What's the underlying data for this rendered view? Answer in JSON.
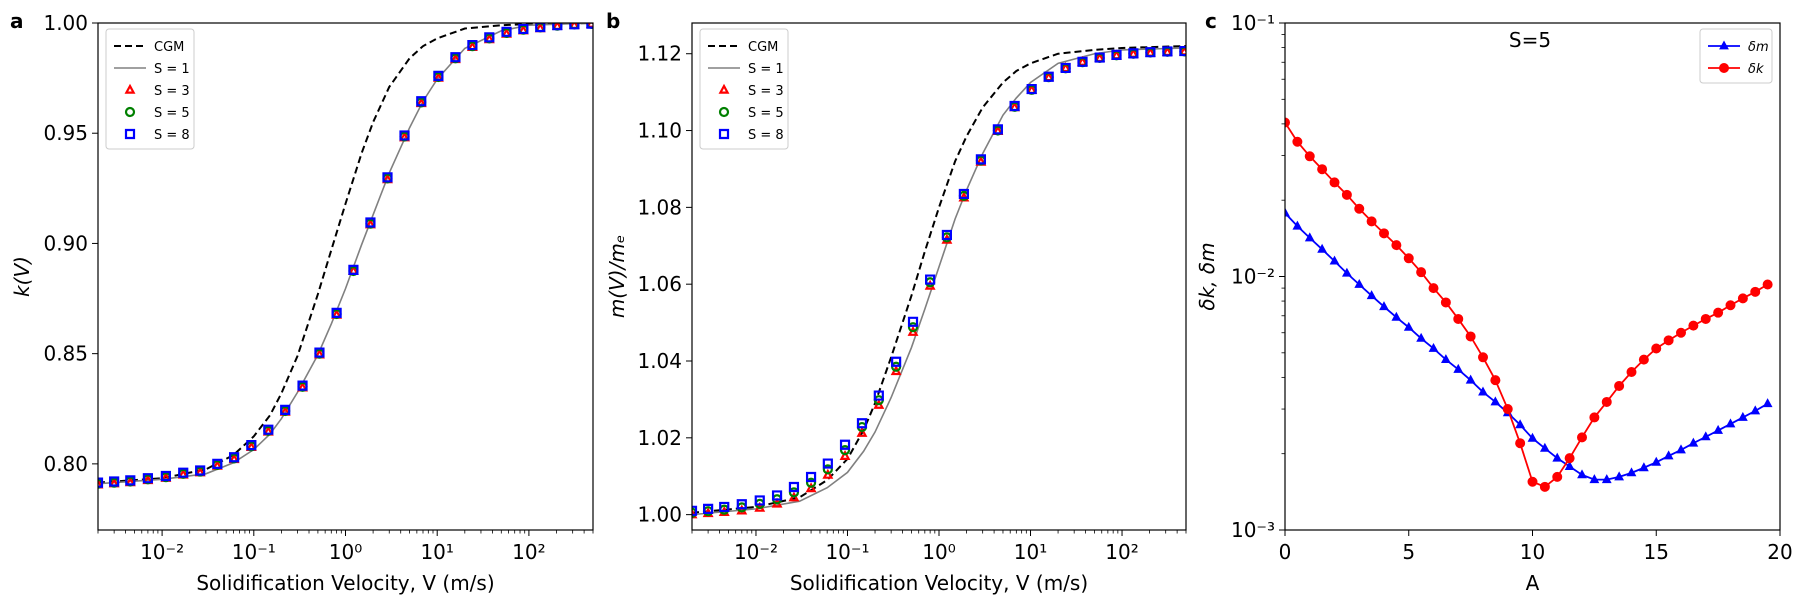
{
  "chart_data": [
    {
      "panel_label": "a",
      "type": "line",
      "xscale": "log",
      "xlim": [
        0.002,
        500
      ],
      "ylim": [
        0.77,
        1.0
      ],
      "xlabel": "Solidification Velocity, V (m/s)",
      "ylabel": "k(V)",
      "legend_position": "top-left",
      "x_ticks": [
        {
          "value": 0.01,
          "label": "10⁻²"
        },
        {
          "value": 0.1,
          "label": "10⁻¹"
        },
        {
          "value": 1,
          "label": "10⁰"
        },
        {
          "value": 10,
          "label": "10¹"
        },
        {
          "value": 100,
          "label": "10²"
        }
      ],
      "y_ticks": [
        {
          "value": 0.8,
          "label": "0.80"
        },
        {
          "value": 0.85,
          "label": "0.85"
        },
        {
          "value": 0.9,
          "label": "0.90"
        },
        {
          "value": 0.95,
          "label": "0.95"
        },
        {
          "value": 1.0,
          "label": "1.00"
        }
      ],
      "series": [
        {
          "name": "CGM",
          "style": "dashed-line",
          "color": "#000000",
          "x": [
            0.002,
            0.01,
            0.03,
            0.06,
            0.1,
            0.15,
            0.2,
            0.3,
            0.5,
            0.7,
            1,
            1.5,
            2,
            3,
            5,
            7,
            10,
            20,
            50,
            100,
            500
          ],
          "y": [
            0.7915,
            0.7935,
            0.7975,
            0.804,
            0.8125,
            0.822,
            0.832,
            0.849,
            0.877,
            0.897,
            0.918,
            0.941,
            0.955,
            0.971,
            0.984,
            0.9895,
            0.993,
            0.9975,
            0.999,
            0.9995,
            1.0
          ]
        },
        {
          "name": "S = 1",
          "style": "solid-line",
          "color": "#808080",
          "x": [
            0.002,
            0.01,
            0.03,
            0.06,
            0.1,
            0.15,
            0.2,
            0.3,
            0.5,
            0.7,
            1,
            1.5,
            2,
            3,
            5,
            7,
            10,
            20,
            50,
            100,
            500
          ],
          "y": [
            0.791,
            0.793,
            0.7955,
            0.8005,
            0.8065,
            0.8135,
            0.8205,
            0.8325,
            0.8495,
            0.8635,
            0.8795,
            0.8995,
            0.913,
            0.932,
            0.9525,
            0.9645,
            0.9745,
            0.9885,
            0.9965,
            0.999,
            1.0
          ]
        },
        {
          "name": "S = 3",
          "style": "triangle-marker",
          "color": "#ff0000",
          "x": [
            0.002,
            0.003,
            0.0045,
            0.007,
            0.011,
            0.017,
            0.026,
            0.04,
            0.061,
            0.094,
            0.144,
            0.22,
            0.34,
            0.52,
            0.8,
            1.22,
            1.87,
            2.87,
            4.4,
            6.7,
            10.3,
            15.8,
            24.2,
            37,
            57,
            87,
            133,
            204,
            313,
            480
          ],
          "y": [
            0.7905,
            0.791,
            0.7915,
            0.7925,
            0.7935,
            0.795,
            0.796,
            0.799,
            0.802,
            0.8075,
            0.8145,
            0.8235,
            0.8345,
            0.8495,
            0.8675,
            0.8875,
            0.9085,
            0.929,
            0.948,
            0.9635,
            0.975,
            0.9835,
            0.989,
            0.9925,
            0.995,
            0.9965,
            0.9975,
            0.9985,
            0.999,
            0.9995
          ]
        },
        {
          "name": "S = 5",
          "style": "circle-marker",
          "color": "#008000",
          "x": [
            0.002,
            0.003,
            0.0045,
            0.007,
            0.011,
            0.017,
            0.026,
            0.04,
            0.061,
            0.094,
            0.144,
            0.22,
            0.34,
            0.52,
            0.8,
            1.22,
            1.87,
            2.87,
            4.4,
            6.7,
            10.3,
            15.8,
            24.2,
            37,
            57,
            87,
            133,
            204,
            313,
            480
          ],
          "y": [
            0.791,
            0.7915,
            0.792,
            0.793,
            0.794,
            0.7955,
            0.7965,
            0.7995,
            0.8025,
            0.808,
            0.815,
            0.824,
            0.835,
            0.85,
            0.868,
            0.8875,
            0.909,
            0.9295,
            0.9485,
            0.964,
            0.9755,
            0.984,
            0.9895,
            0.993,
            0.9955,
            0.997,
            0.998,
            0.9988,
            0.9993,
            0.9996
          ]
        },
        {
          "name": "S = 8",
          "style": "square-marker",
          "color": "#0000ff",
          "x": [
            0.002,
            0.003,
            0.0045,
            0.007,
            0.011,
            0.017,
            0.026,
            0.04,
            0.061,
            0.094,
            0.144,
            0.22,
            0.34,
            0.52,
            0.8,
            1.22,
            1.87,
            2.87,
            4.4,
            6.7,
            10.3,
            15.8,
            24.2,
            37,
            57,
            87,
            133,
            204,
            313,
            480
          ],
          "y": [
            0.7915,
            0.792,
            0.7925,
            0.7935,
            0.7945,
            0.796,
            0.797,
            0.8,
            0.803,
            0.8085,
            0.8155,
            0.8245,
            0.8355,
            0.8505,
            0.8685,
            0.888,
            0.9095,
            0.93,
            0.949,
            0.9645,
            0.976,
            0.9845,
            0.99,
            0.9935,
            0.996,
            0.9973,
            0.9982,
            0.999,
            0.9994,
            0.9997
          ]
        }
      ]
    },
    {
      "panel_label": "b",
      "type": "line",
      "xscale": "log",
      "xlim": [
        0.002,
        500
      ],
      "ylim": [
        0.996,
        1.128
      ],
      "xlabel": "Solidification Velocity, V (m/s)",
      "ylabel": "m(V)/mₑ",
      "legend_position": "top-left",
      "x_ticks": [
        {
          "value": 0.01,
          "label": "10⁻²"
        },
        {
          "value": 0.1,
          "label": "10⁻¹"
        },
        {
          "value": 1,
          "label": "10⁰"
        },
        {
          "value": 10,
          "label": "10¹"
        },
        {
          "value": 100,
          "label": "10²"
        }
      ],
      "y_ticks": [
        {
          "value": 1.0,
          "label": "1.00"
        },
        {
          "value": 1.02,
          "label": "1.02"
        },
        {
          "value": 1.04,
          "label": "1.04"
        },
        {
          "value": 1.06,
          "label": "1.06"
        },
        {
          "value": 1.08,
          "label": "1.08"
        },
        {
          "value": 1.1,
          "label": "1.10"
        },
        {
          "value": 1.12,
          "label": "1.12"
        }
      ],
      "series": [
        {
          "name": "CGM",
          "style": "dashed-line",
          "color": "#000000",
          "x": [
            0.002,
            0.01,
            0.03,
            0.06,
            0.1,
            0.15,
            0.2,
            0.3,
            0.5,
            0.7,
            1,
            1.5,
            2,
            3,
            5,
            7,
            10,
            20,
            50,
            100,
            500
          ],
          "y": [
            1.0005,
            1.002,
            1.0045,
            1.009,
            1.0145,
            1.022,
            1.029,
            1.041,
            1.057,
            1.0685,
            1.08,
            1.092,
            1.0985,
            1.106,
            1.1125,
            1.1155,
            1.1175,
            1.12,
            1.121,
            1.1215,
            1.122
          ]
        },
        {
          "name": "S = 1",
          "style": "solid-line",
          "color": "#808080",
          "x": [
            0.002,
            0.01,
            0.03,
            0.06,
            0.1,
            0.15,
            0.2,
            0.3,
            0.5,
            0.7,
            1,
            1.5,
            2,
            3,
            5,
            7,
            10,
            20,
            50,
            100,
            500
          ],
          "y": [
            1.0,
            1.0015,
            1.0035,
            1.007,
            1.011,
            1.0165,
            1.0215,
            1.0305,
            1.0435,
            1.0535,
            1.0645,
            1.077,
            1.0845,
            1.094,
            1.104,
            1.1085,
            1.1125,
            1.1175,
            1.12,
            1.121,
            1.1215
          ]
        },
        {
          "name": "S = 3",
          "style": "triangle-marker",
          "color": "#ff0000",
          "x": [
            0.002,
            0.003,
            0.0045,
            0.007,
            0.011,
            0.017,
            0.026,
            0.04,
            0.061,
            0.094,
            0.144,
            0.22,
            0.34,
            0.52,
            0.8,
            1.22,
            1.87,
            2.87,
            4.4,
            6.7,
            10.3,
            15.8,
            24.2,
            37,
            57,
            87,
            133,
            204,
            313,
            480
          ],
          "y": [
            1.0,
            1.0003,
            1.0006,
            1.001,
            1.0017,
            1.0028,
            1.0044,
            1.0068,
            1.0103,
            1.0152,
            1.0212,
            1.0285,
            1.0373,
            1.0475,
            1.0595,
            1.0715,
            1.0825,
            1.0918,
            1.0998,
            1.106,
            1.1105,
            1.1138,
            1.1162,
            1.1178,
            1.1188,
            1.1195,
            1.1199,
            1.1202,
            1.1204,
            1.1205
          ]
        },
        {
          "name": "S = 5",
          "style": "circle-marker",
          "color": "#008000",
          "x": [
            0.002,
            0.003,
            0.0045,
            0.007,
            0.011,
            0.017,
            0.026,
            0.04,
            0.061,
            0.094,
            0.144,
            0.22,
            0.34,
            0.52,
            0.8,
            1.22,
            1.87,
            2.87,
            4.4,
            6.7,
            10.3,
            15.8,
            24.2,
            37,
            57,
            87,
            133,
            204,
            313,
            480
          ],
          "y": [
            1.0005,
            1.0009,
            1.0013,
            1.0019,
            1.0028,
            1.004,
            1.0058,
            1.0083,
            1.0118,
            1.0168,
            1.0228,
            1.0298,
            1.0385,
            1.0488,
            1.0605,
            1.0722,
            1.083,
            1.0922,
            1.1,
            1.1062,
            1.1106,
            1.1139,
            1.1162,
            1.1178,
            1.1189,
            1.1196,
            1.12,
            1.1203,
            1.1205,
            1.1206
          ]
        },
        {
          "name": "S = 8",
          "style": "square-marker",
          "color": "#0000ff",
          "x": [
            0.002,
            0.003,
            0.0045,
            0.007,
            0.011,
            0.017,
            0.026,
            0.04,
            0.061,
            0.094,
            0.144,
            0.22,
            0.34,
            0.52,
            0.8,
            1.22,
            1.87,
            2.87,
            4.4,
            6.7,
            10.3,
            15.8,
            24.2,
            37,
            57,
            87,
            133,
            204,
            313,
            480
          ],
          "y": [
            1.001,
            1.0015,
            1.002,
            1.0027,
            1.0037,
            1.005,
            1.0072,
            1.0098,
            1.0133,
            1.0182,
            1.0238,
            1.031,
            1.0398,
            1.0502,
            1.0612,
            1.0728,
            1.0835,
            1.0925,
            1.1003,
            1.1064,
            1.1108,
            1.114,
            1.1163,
            1.1179,
            1.119,
            1.1197,
            1.1201,
            1.1204,
            1.1206,
            1.1207
          ]
        }
      ]
    },
    {
      "panel_label": "c",
      "type": "line",
      "xscale": "linear",
      "yscale": "log",
      "xlim": [
        0,
        20
      ],
      "ylim": [
        0.001,
        0.1
      ],
      "xlabel": "A",
      "ylabel": "δk, δm",
      "annotation": "S=5",
      "legend_position": "top-right",
      "x_ticks": [
        {
          "value": 0,
          "label": "0"
        },
        {
          "value": 5,
          "label": "5"
        },
        {
          "value": 10,
          "label": "10"
        },
        {
          "value": 15,
          "label": "15"
        },
        {
          "value": 20,
          "label": "20"
        }
      ],
      "y_ticks": [
        {
          "value": 0.001,
          "label": "10⁻³"
        },
        {
          "value": 0.01,
          "label": "10⁻²"
        },
        {
          "value": 0.1,
          "label": "10⁻¹"
        }
      ],
      "series": [
        {
          "name": "δm",
          "style": "triangle-line",
          "color": "#0000ff",
          "x": [
            0,
            0.5,
            1,
            1.5,
            2,
            2.5,
            3,
            3.5,
            4,
            4.5,
            5,
            5.5,
            6,
            6.5,
            7,
            7.5,
            8,
            8.5,
            9,
            9.5,
            10,
            10.5,
            11,
            11.5,
            12,
            12.5,
            13,
            13.5,
            14,
            14.5,
            15,
            15.5,
            16,
            16.5,
            17,
            17.5,
            18,
            18.5,
            19,
            19.5
          ],
          "y": [
            0.0178,
            0.0158,
            0.0142,
            0.0128,
            0.0115,
            0.0103,
            0.0093,
            0.0084,
            0.0076,
            0.0069,
            0.0063,
            0.0057,
            0.0052,
            0.0047,
            0.0043,
            0.0039,
            0.0035,
            0.0032,
            0.0029,
            0.0026,
            0.0023,
            0.0021,
            0.00192,
            0.00178,
            0.00165,
            0.00158,
            0.00158,
            0.00162,
            0.00168,
            0.00176,
            0.00185,
            0.00196,
            0.00207,
            0.0022,
            0.00233,
            0.00247,
            0.00262,
            0.00278,
            0.00295,
            0.00315
          ]
        },
        {
          "name": "δk",
          "style": "circle-line",
          "color": "#ff0000",
          "x": [
            0,
            0.5,
            1,
            1.5,
            2,
            2.5,
            3,
            3.5,
            4,
            4.5,
            5,
            5.5,
            6,
            6.5,
            7,
            7.5,
            8,
            8.5,
            9,
            9.5,
            10,
            10.5,
            11,
            11.5,
            12,
            12.5,
            13,
            13.5,
            14,
            14.5,
            15,
            15.5,
            16,
            16.5,
            17,
            17.5,
            18,
            18.5,
            19,
            19.5
          ],
          "y": [
            0.0405,
            0.034,
            0.0298,
            0.0265,
            0.0235,
            0.021,
            0.0185,
            0.0165,
            0.0148,
            0.0133,
            0.0118,
            0.0104,
            0.009,
            0.0079,
            0.0068,
            0.0058,
            0.0048,
            0.0039,
            0.003,
            0.0022,
            0.00155,
            0.00148,
            0.00162,
            0.00192,
            0.00232,
            0.00278,
            0.0032,
            0.0037,
            0.0042,
            0.0047,
            0.0052,
            0.0056,
            0.006,
            0.0064,
            0.0068,
            0.0072,
            0.0077,
            0.0082,
            0.0087,
            0.0093
          ]
        }
      ]
    }
  ]
}
